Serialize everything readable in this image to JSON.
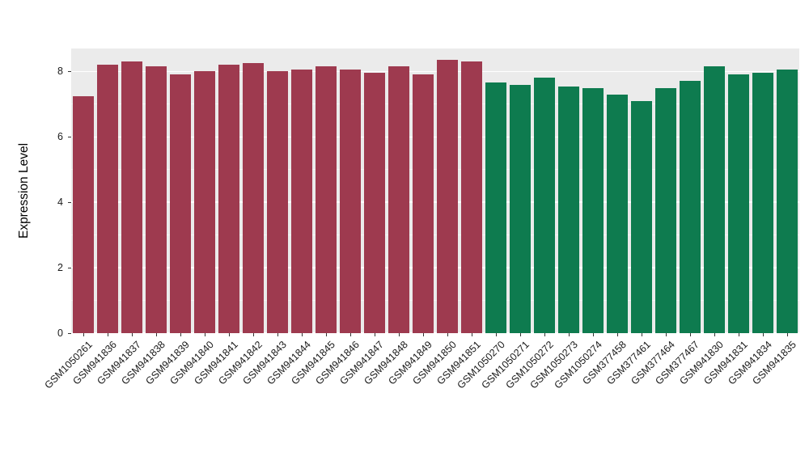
{
  "chart_data": {
    "type": "bar",
    "title": "",
    "xlabel": "",
    "ylabel": "Expression Level",
    "ylim": [
      0,
      8.7
    ],
    "yticks": [
      0,
      2,
      4,
      6,
      8
    ],
    "yticks_minor": [
      1,
      3,
      5,
      7
    ],
    "legend": "none",
    "grid": "white major and minor horizontal gridlines on gray panel",
    "panel_background": "#ebebeb",
    "groups": [
      {
        "name": "group-1-red",
        "color": "#9e3a4f"
      },
      {
        "name": "group-2-green",
        "color": "#0e7b4f"
      }
    ],
    "categories": [
      "GSM1050261",
      "GSM941836",
      "GSM941837",
      "GSM941838",
      "GSM941839",
      "GSM941840",
      "GSM941841",
      "GSM941842",
      "GSM941843",
      "GSM941844",
      "GSM941845",
      "GSM941846",
      "GSM941847",
      "GSM941848",
      "GSM941849",
      "GSM941850",
      "GSM941851",
      "GSM1050270",
      "GSM1050271",
      "GSM1050272",
      "GSM1050273",
      "GSM1050274",
      "GSM377458",
      "GSM377461",
      "GSM377464",
      "GSM377467",
      "GSM941830",
      "GSM941831",
      "GSM941834",
      "GSM941835"
    ],
    "values": [
      7.25,
      8.2,
      8.3,
      8.15,
      7.9,
      8.0,
      8.2,
      8.25,
      8.0,
      8.05,
      8.15,
      8.05,
      7.95,
      8.15,
      7.9,
      8.35,
      8.3,
      7.65,
      7.6,
      7.8,
      7.55,
      7.5,
      7.3,
      7.1,
      7.5,
      7.7,
      8.15,
      7.9,
      7.95,
      8.05
    ],
    "bar_groups": [
      0,
      0,
      0,
      0,
      0,
      0,
      0,
      0,
      0,
      0,
      0,
      0,
      0,
      0,
      0,
      0,
      0,
      1,
      1,
      1,
      1,
      1,
      1,
      1,
      1,
      1,
      1,
      1,
      1,
      1
    ]
  }
}
